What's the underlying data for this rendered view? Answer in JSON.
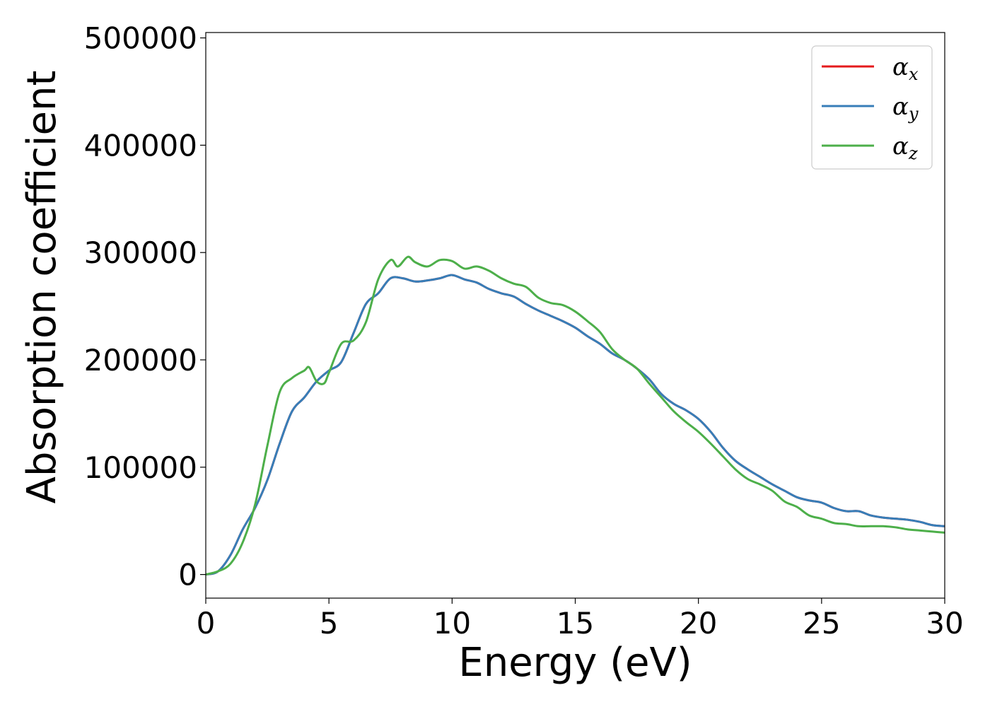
{
  "chart_data": {
    "type": "line",
    "title": "",
    "xlabel": "Energy (eV)",
    "ylabel": "Absorption coefficient",
    "xlim": [
      0,
      30
    ],
    "ylim": [
      -22000,
      505000
    ],
    "xticks": [
      0,
      5,
      10,
      15,
      20,
      25,
      30
    ],
    "yticks": [
      0,
      100000,
      200000,
      300000,
      400000,
      500000
    ],
    "xtick_labels": [
      "0",
      "5",
      "10",
      "15",
      "20",
      "25",
      "30"
    ],
    "ytick_labels": [
      "0",
      "100000",
      "200000",
      "300000",
      "400000",
      "500000"
    ],
    "grid": false,
    "legend_position": "top-right",
    "series": [
      {
        "name": "αx",
        "symbol": "α",
        "subscript": "x",
        "color": "#e41a1c",
        "x": [
          0,
          0.5,
          1,
          1.5,
          2,
          2.5,
          3,
          3.5,
          4,
          4.5,
          5,
          5.5,
          6,
          6.5,
          7,
          7.5,
          8,
          8.5,
          9,
          9.5,
          10,
          10.5,
          11,
          11.5,
          12,
          12.5,
          13,
          13.5,
          14,
          14.5,
          15,
          15.5,
          16,
          16.5,
          17,
          17.5,
          18,
          18.5,
          19,
          19.5,
          20,
          20.5,
          21,
          21.5,
          22,
          22.5,
          23,
          23.5,
          24,
          24.5,
          25,
          25.5,
          26,
          26.5,
          27,
          27.5,
          28,
          28.5,
          29,
          29.5,
          30
        ],
        "y": [
          0,
          3000,
          18000,
          42000,
          62000,
          88000,
          122000,
          152000,
          165000,
          180000,
          190000,
          198000,
          225000,
          252000,
          262000,
          276000,
          276000,
          273000,
          274000,
          276000,
          279000,
          275000,
          272000,
          266000,
          262000,
          259000,
          252000,
          246000,
          241000,
          236000,
          230000,
          222000,
          215000,
          206000,
          200000,
          192000,
          182000,
          168000,
          159000,
          153000,
          145000,
          133000,
          118000,
          106000,
          98000,
          91000,
          84000,
          78000,
          72000,
          69000,
          67000,
          62000,
          59000,
          59000,
          55000,
          53000,
          52000,
          51000,
          49000,
          46000,
          45000
        ]
      },
      {
        "name": "αy",
        "symbol": "α",
        "subscript": "y",
        "color": "#377eb8",
        "x": [
          0,
          0.5,
          1,
          1.5,
          2,
          2.5,
          3,
          3.5,
          4,
          4.5,
          5,
          5.5,
          6,
          6.5,
          7,
          7.5,
          8,
          8.5,
          9,
          9.5,
          10,
          10.5,
          11,
          11.5,
          12,
          12.5,
          13,
          13.5,
          14,
          14.5,
          15,
          15.5,
          16,
          16.5,
          17,
          17.5,
          18,
          18.5,
          19,
          19.5,
          20,
          20.5,
          21,
          21.5,
          22,
          22.5,
          23,
          23.5,
          24,
          24.5,
          25,
          25.5,
          26,
          26.5,
          27,
          27.5,
          28,
          28.5,
          29,
          29.5,
          30
        ],
        "y": [
          0,
          3000,
          18000,
          42000,
          62000,
          88000,
          122000,
          152000,
          165000,
          180000,
          190000,
          198000,
          225000,
          252000,
          262000,
          276000,
          276000,
          273000,
          274000,
          276000,
          279000,
          275000,
          272000,
          266000,
          262000,
          259000,
          252000,
          246000,
          241000,
          236000,
          230000,
          222000,
          215000,
          206000,
          200000,
          192000,
          182000,
          168000,
          159000,
          153000,
          145000,
          133000,
          118000,
          106000,
          98000,
          91000,
          84000,
          78000,
          72000,
          69000,
          67000,
          62000,
          59000,
          59000,
          55000,
          53000,
          52000,
          51000,
          49000,
          46000,
          45000
        ]
      },
      {
        "name": "αz",
        "symbol": "α",
        "subscript": "z",
        "color": "#4daf4a",
        "x": [
          0,
          0.5,
          1,
          1.5,
          2,
          2.5,
          3,
          3.5,
          4,
          4.2,
          4.5,
          4.8,
          5,
          5.5,
          6,
          6.5,
          7,
          7.5,
          7.8,
          8.2,
          8.5,
          9,
          9.5,
          10,
          10.5,
          11,
          11.5,
          12,
          12.5,
          13,
          13.5,
          14,
          14.5,
          15,
          15.5,
          16,
          16.5,
          17,
          17.5,
          18,
          18.5,
          19,
          19.5,
          20,
          20.5,
          21,
          21.5,
          22,
          22.5,
          23,
          23.5,
          24,
          24.5,
          25,
          25.5,
          26,
          26.5,
          27,
          27.5,
          28,
          28.5,
          29,
          29.5,
          30
        ],
        "y": [
          0,
          3000,
          10000,
          30000,
          65000,
          120000,
          170000,
          183000,
          190000,
          193000,
          180000,
          178000,
          188000,
          215000,
          218000,
          235000,
          275000,
          293000,
          287000,
          296000,
          291000,
          287000,
          293000,
          292000,
          285000,
          287000,
          283000,
          276000,
          271000,
          268000,
          258000,
          253000,
          251000,
          245000,
          236000,
          226000,
          210000,
          200000,
          192000,
          178000,
          165000,
          152000,
          142000,
          133000,
          122000,
          110000,
          98000,
          89000,
          84000,
          78000,
          68000,
          63000,
          55000,
          52000,
          48000,
          47000,
          45000,
          45000,
          45000,
          44000,
          42000,
          41000,
          40000,
          39000
        ]
      }
    ]
  }
}
